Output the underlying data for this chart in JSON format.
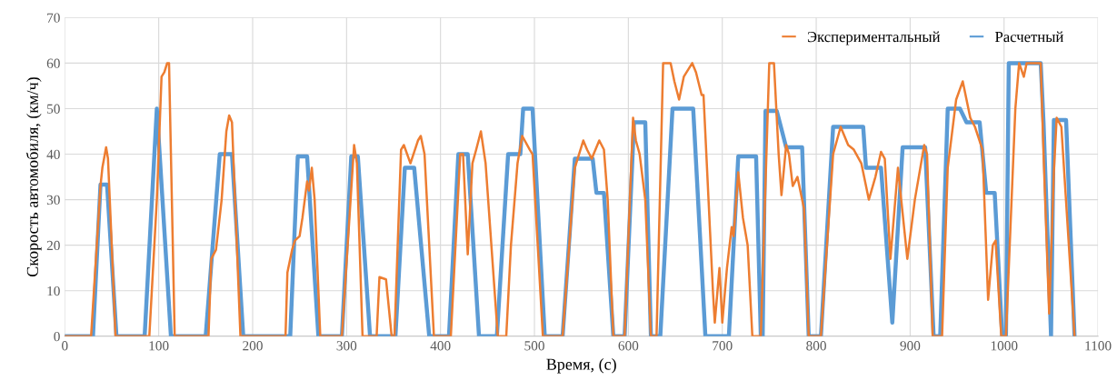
{
  "chart_data": {
    "type": "line",
    "xlabel": "Время, (с)",
    "ylabel": "Скорость автомобиля, (км/ч)",
    "xlim": [
      0,
      1100
    ],
    "xticks": [
      0,
      100,
      200,
      300,
      400,
      500,
      600,
      700,
      800,
      900,
      1000,
      1100
    ],
    "ylim": [
      0,
      70
    ],
    "yticks": [
      0,
      10,
      20,
      30,
      40,
      50,
      60,
      70
    ],
    "grid": true,
    "legend": "top right",
    "marker": "none",
    "line_style": "solid",
    "series": [
      {
        "name": "Экспериментальный",
        "color": "#ed7d31",
        "x": [
          0,
          28,
          38,
          40,
          44,
          46,
          50,
          54,
          90,
          98,
          103,
          106,
          109,
          111,
          117,
          153,
          156,
          161,
          167,
          172,
          175,
          178,
          187,
          235,
          237,
          242,
          245,
          250,
          253,
          258,
          260,
          263,
          266,
          272,
          295,
          308,
          311,
          317,
          332,
          335,
          342,
          348,
          351,
          358,
          361,
          368,
          376,
          379,
          383,
          393,
          411,
          421,
          424,
          429,
          434,
          438,
          443,
          448,
          461,
          470,
          475,
          482,
          487,
          495,
          498,
          509,
          530,
          543,
          552,
          556,
          561,
          569,
          574,
          578,
          584,
          596,
          605,
          608,
          612,
          618,
          624,
          630,
          637,
          645,
          649,
          654,
          659,
          668,
          672,
          678,
          680,
          690,
          692,
          697,
          700,
          705,
          710,
          712,
          717,
          722,
          727,
          732,
          741,
          750,
          755,
          760,
          763,
          768,
          771,
          775,
          780,
          787,
          792,
          805,
          818,
          826,
          834,
          840,
          848,
          856,
          863,
          869,
          873,
          879,
          887,
          897,
          905,
          915,
          918,
          924,
          934,
          940,
          949,
          956,
          964,
          969,
          977,
          983,
          988,
          991,
          997,
          1002,
          1012,
          1016,
          1021,
          1024,
          1039,
          1042,
          1048,
          1053,
          1056,
          1061,
          1072,
          1075
        ],
        "values": [
          0,
          0,
          33,
          37,
          41.5,
          39,
          20,
          0,
          0,
          30,
          57,
          58,
          60,
          60,
          0,
          0,
          17,
          19,
          30,
          45,
          48.5,
          47,
          0,
          0,
          14,
          19,
          21,
          22,
          26,
          34,
          32,
          37,
          30,
          0,
          0,
          42,
          38,
          0,
          0,
          13,
          12.5,
          0,
          0,
          41,
          42,
          38,
          43,
          44,
          40,
          0,
          0,
          40,
          40,
          18,
          38,
          41,
          45,
          38,
          0,
          0,
          20,
          38,
          44,
          41,
          40,
          0,
          0,
          37,
          43,
          41,
          39,
          43,
          41,
          30,
          0,
          0,
          48,
          43,
          40,
          30,
          0,
          0,
          60,
          60,
          56,
          52,
          57,
          60,
          58,
          53,
          53,
          10,
          3,
          15,
          3,
          15,
          24,
          22,
          36,
          26,
          20,
          0,
          0,
          60,
          60,
          40,
          31,
          42,
          40,
          33,
          35,
          28,
          0,
          0,
          40,
          46,
          42,
          41,
          38,
          30,
          35,
          40.5,
          39,
          17,
          37,
          17,
          30,
          42,
          40,
          0,
          0,
          37,
          52,
          56,
          48,
          46,
          41,
          8,
          20,
          21,
          0,
          0,
          50,
          60,
          57,
          60,
          60,
          40,
          5,
          36,
          48,
          46,
          10,
          0
        ]
      },
      {
        "name": "Расчетный",
        "color": "#5b9bd5",
        "x": [
          0,
          30,
          38,
          45,
          55,
          85,
          98,
          113,
          150,
          165,
          178,
          190,
          240,
          248,
          258,
          270,
          295,
          305,
          312,
          325,
          352,
          362,
          372,
          388,
          409,
          419,
          429,
          441,
          460,
          472,
          485,
          488,
          498,
          511,
          530,
          543,
          562,
          566,
          574,
          584,
          596,
          606,
          618,
          624,
          634,
          647,
          669,
          682,
          707,
          717,
          736,
          741,
          743,
          746,
          758,
          768,
          785,
          792,
          805,
          818,
          850,
          853,
          869,
          881,
          892,
          916,
          925,
          932,
          940,
          953,
          960,
          974,
          981,
          990,
          998,
          1002,
          1005,
          1039,
          1042,
          1050,
          1053,
          1066,
          1075
        ],
        "values": [
          0,
          0,
          33.3,
          33.3,
          0,
          0,
          50,
          0,
          0,
          40,
          40,
          0,
          0,
          39.5,
          39.5,
          0,
          0,
          39.5,
          39.5,
          0,
          0,
          37,
          37,
          0,
          0,
          40,
          40,
          0,
          0,
          40,
          40,
          50,
          50,
          0,
          0,
          39,
          39,
          31.5,
          31.5,
          0,
          0,
          47,
          47,
          0,
          0,
          50,
          50,
          0,
          0,
          39.5,
          39.5,
          0,
          0,
          49.5,
          49.5,
          41.5,
          41.5,
          0,
          0,
          46,
          46,
          37,
          37,
          3,
          41.5,
          41.5,
          0,
          0,
          50,
          50,
          47,
          47,
          31.5,
          31.5,
          0,
          0,
          60,
          60,
          47,
          0,
          47.5,
          47.5,
          0
        ]
      }
    ]
  }
}
